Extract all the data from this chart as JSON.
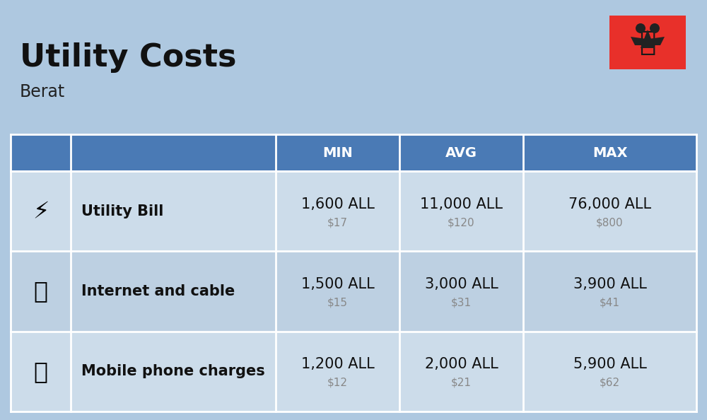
{
  "title": "Utility Costs",
  "subtitle": "Berat",
  "background_color": "#aec8e0",
  "header_bg_color": "#4a7ab5",
  "header_text_color": "#ffffff",
  "row_bg_color_1": "#ccdcea",
  "row_bg_color_2": "#bdd0e2",
  "table_border_color": "#ffffff",
  "columns": [
    "MIN",
    "AVG",
    "MAX"
  ],
  "rows": [
    {
      "label": "Utility Bill",
      "min_all": "1,600 ALL",
      "min_usd": "$17",
      "avg_all": "11,000 ALL",
      "avg_usd": "$120",
      "max_all": "76,000 ALL",
      "max_usd": "$800"
    },
    {
      "label": "Internet and cable",
      "min_all": "1,500 ALL",
      "min_usd": "$15",
      "avg_all": "3,000 ALL",
      "avg_usd": "$31",
      "max_all": "3,900 ALL",
      "max_usd": "$41"
    },
    {
      "label": "Mobile phone charges",
      "min_all": "1,200 ALL",
      "min_usd": "$12",
      "avg_all": "2,000 ALL",
      "avg_usd": "$21",
      "max_all": "5,900 ALL",
      "max_usd": "$62"
    }
  ],
  "title_fontsize": 32,
  "subtitle_fontsize": 17,
  "header_fontsize": 14,
  "cell_fontsize_main": 15,
  "cell_fontsize_sub": 11,
  "label_fontsize": 15,
  "flag_color_red": "#e8302a",
  "usd_color": "#888888"
}
